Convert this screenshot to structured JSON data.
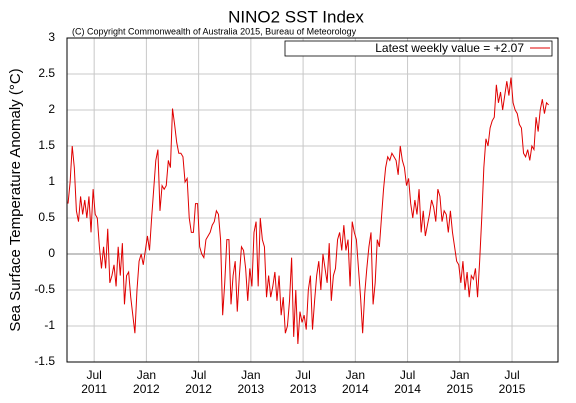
{
  "chart_data": {
    "type": "line",
    "title": "NINO2 SST Index",
    "subtitle": "(C) Copyright Commonwealth of Australia 2015, Bureau of Meteorology",
    "ylabel": "Sea Surface Temperature Anomaly (°C)",
    "grid": true,
    "legend": "upper right",
    "xlim": [
      2011.24,
      2015.94
    ],
    "ylim": [
      -1.5,
      3
    ],
    "yticks": [
      -1.5,
      -1,
      -0.5,
      0,
      0.5,
      1,
      1.5,
      2,
      2.5,
      3
    ],
    "xticks": [
      {
        "value": 2011.5,
        "label": "Jul\n2011"
      },
      {
        "value": 2012.0,
        "label": "Jan\n2012"
      },
      {
        "value": 2012.5,
        "label": "Jul\n2012"
      },
      {
        "value": 2013.0,
        "label": "Jan\n2013"
      },
      {
        "value": 2013.5,
        "label": "Jul\n2013"
      },
      {
        "value": 2014.0,
        "label": "Jan\n2014"
      },
      {
        "value": 2014.5,
        "label": "Jul\n2014"
      },
      {
        "value": 2015.0,
        "label": "Jan\n2015"
      },
      {
        "value": 2015.5,
        "label": "Jul\n2015"
      }
    ],
    "x": [
      2011.25,
      2011.27,
      2011.29,
      2011.31,
      2011.33,
      2011.35,
      2011.37,
      2011.39,
      2011.41,
      2011.43,
      2011.45,
      2011.47,
      2011.49,
      2011.51,
      2011.53,
      2011.55,
      2011.57,
      2011.59,
      2011.61,
      2011.63,
      2011.65,
      2011.67,
      2011.69,
      2011.71,
      2011.73,
      2011.75,
      2011.77,
      2011.79,
      2011.81,
      2011.83,
      2011.85,
      2011.87,
      2011.89,
      2011.91,
      2011.93,
      2011.95,
      2011.97,
      2011.99,
      2012.01,
      2012.03,
      2012.05,
      2012.07,
      2012.09,
      2012.11,
      2012.13,
      2012.15,
      2012.17,
      2012.19,
      2012.21,
      2012.23,
      2012.25,
      2012.27,
      2012.29,
      2012.31,
      2012.33,
      2012.35,
      2012.37,
      2012.39,
      2012.41,
      2012.43,
      2012.45,
      2012.47,
      2012.49,
      2012.51,
      2012.53,
      2012.55,
      2012.57,
      2012.59,
      2012.61,
      2012.63,
      2012.65,
      2012.67,
      2012.69,
      2012.71,
      2012.73,
      2012.75,
      2012.77,
      2012.79,
      2012.81,
      2012.83,
      2012.85,
      2012.87,
      2012.89,
      2012.91,
      2012.93,
      2012.95,
      2012.97,
      2012.99,
      2013.01,
      2013.03,
      2013.05,
      2013.07,
      2013.09,
      2013.11,
      2013.13,
      2013.15,
      2013.17,
      2013.19,
      2013.21,
      2013.23,
      2013.25,
      2013.27,
      2013.29,
      2013.31,
      2013.33,
      2013.35,
      2013.37,
      2013.39,
      2013.41,
      2013.43,
      2013.45,
      2013.47,
      2013.49,
      2013.51,
      2013.53,
      2013.55,
      2013.57,
      2013.59,
      2013.61,
      2013.63,
      2013.65,
      2013.67,
      2013.69,
      2013.71,
      2013.73,
      2013.75,
      2013.77,
      2013.79,
      2013.81,
      2013.83,
      2013.85,
      2013.87,
      2013.89,
      2013.91,
      2013.93,
      2013.95,
      2013.97,
      2013.99,
      2014.01,
      2014.03,
      2014.05,
      2014.07,
      2014.09,
      2014.11,
      2014.13,
      2014.15,
      2014.17,
      2014.19,
      2014.21,
      2014.23,
      2014.25,
      2014.27,
      2014.29,
      2014.31,
      2014.33,
      2014.35,
      2014.37,
      2014.39,
      2014.41,
      2014.43,
      2014.45,
      2014.47,
      2014.49,
      2014.51,
      2014.53,
      2014.55,
      2014.57,
      2014.59,
      2014.61,
      2014.63,
      2014.65,
      2014.67,
      2014.69,
      2014.71,
      2014.73,
      2014.75,
      2014.77,
      2014.79,
      2014.81,
      2014.83,
      2014.85,
      2014.87,
      2014.89,
      2014.91,
      2014.93,
      2014.95,
      2014.97,
      2014.99,
      2015.01,
      2015.03,
      2015.05,
      2015.07,
      2015.09,
      2015.11,
      2015.13,
      2015.15,
      2015.17,
      2015.19,
      2015.21,
      2015.23,
      2015.25,
      2015.27,
      2015.29,
      2015.31,
      2015.33,
      2015.35,
      2015.37,
      2015.39,
      2015.41,
      2015.43,
      2015.45,
      2015.47,
      2015.49,
      2015.51,
      2015.53,
      2015.55,
      2015.57,
      2015.59,
      2015.61,
      2015.63,
      2015.65,
      2015.67,
      2015.69,
      2015.71,
      2015.73,
      2015.75,
      2015.77,
      2015.79,
      2015.81,
      2015.83,
      2015.85
    ],
    "series": [
      {
        "name": "Latest weekly value = +2.07",
        "color": "#e00000",
        "values": [
          0.7,
          1.0,
          1.5,
          1.2,
          0.6,
          0.45,
          0.8,
          0.55,
          0.75,
          0.5,
          0.8,
          0.3,
          0.9,
          0.55,
          0.5,
          0.1,
          -0.2,
          0.1,
          -0.2,
          0.35,
          -0.4,
          -0.3,
          -0.15,
          -0.45,
          0.1,
          -0.3,
          0.15,
          -0.7,
          -0.3,
          -0.25,
          -0.6,
          -0.85,
          -1.1,
          -0.5,
          -0.1,
          0.0,
          -0.15,
          0.05,
          0.25,
          0.05,
          0.5,
          0.9,
          1.3,
          1.45,
          0.6,
          0.95,
          0.9,
          0.95,
          1.3,
          1.2,
          2.02,
          1.8,
          1.55,
          1.4,
          1.4,
          1.35,
          1.0,
          1.05,
          0.5,
          0.3,
          0.3,
          0.7,
          0.7,
          0.1,
          0.0,
          -0.05,
          0.2,
          0.25,
          0.3,
          0.4,
          0.45,
          0.6,
          0.55,
          0.2,
          -0.85,
          -0.4,
          0.2,
          0.2,
          -0.7,
          -0.3,
          -0.1,
          -0.8,
          -0.3,
          0.1,
          0.05,
          -0.2,
          -0.65,
          -0.2,
          -0.45,
          0.3,
          0.45,
          -0.45,
          0.5,
          0.2,
          0.1,
          -0.6,
          -0.3,
          -0.6,
          -0.45,
          -0.25,
          -0.65,
          -0.3,
          -0.85,
          -0.6,
          -1.1,
          -1.0,
          -0.65,
          -0.05,
          -1.15,
          -0.5,
          -1.25,
          -0.8,
          -0.95,
          -0.85,
          -1.05,
          -0.5,
          -0.3,
          -1.05,
          -0.65,
          -0.3,
          -0.1,
          -0.5,
          0.0,
          -0.2,
          -0.4,
          0.15,
          -0.65,
          -0.3,
          -0.2,
          0.2,
          0.3,
          0.05,
          0.4,
          0.05,
          0.2,
          -0.45,
          0.45,
          0.3,
          0.2,
          -0.2,
          -0.6,
          -1.1,
          -0.55,
          -0.2,
          0.1,
          0.3,
          -0.7,
          -0.4,
          0.2,
          0.1,
          0.5,
          0.9,
          1.2,
          1.35,
          1.3,
          1.4,
          1.35,
          1.3,
          1.1,
          1.5,
          1.3,
          1.2,
          0.95,
          1.05,
          0.7,
          0.5,
          0.75,
          0.55,
          0.9,
          0.3,
          0.6,
          0.25,
          0.4,
          0.55,
          0.75,
          0.65,
          0.45,
          0.9,
          0.8,
          0.45,
          0.6,
          0.55,
          0.3,
          0.6,
          0.3,
          0.1,
          -0.1,
          -0.15,
          -0.4,
          -0.1,
          -0.5,
          -0.25,
          -0.6,
          -0.3,
          -0.35,
          -0.2,
          -0.6,
          -0.1,
          0.5,
          1.2,
          1.6,
          1.5,
          1.75,
          1.85,
          1.9,
          2.35,
          2.1,
          2.25,
          2.0,
          2.2,
          2.4,
          2.2,
          2.45,
          2.1,
          2.0,
          1.95,
          1.8,
          1.75,
          1.4,
          1.35,
          1.45,
          1.3,
          1.5,
          1.45,
          1.9,
          1.7,
          2.0,
          2.15,
          1.95,
          2.1,
          2.07
        ]
      }
    ]
  }
}
